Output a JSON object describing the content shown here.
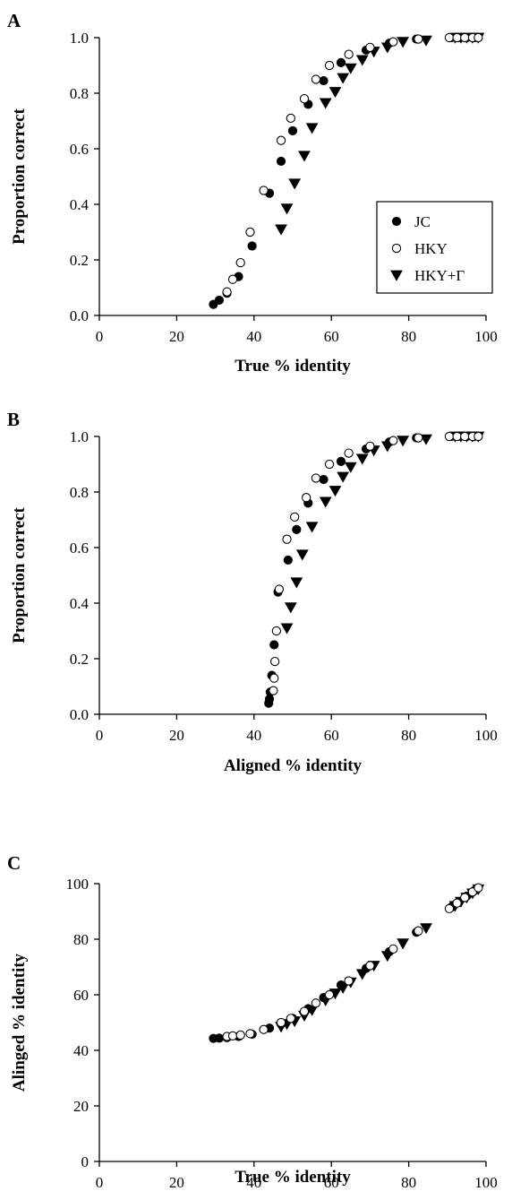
{
  "chart_data": [
    {
      "panel": "A",
      "type": "scatter",
      "xlabel": "True % identity",
      "ylabel": "Proportion correct",
      "xlim": [
        0,
        100
      ],
      "ylim": [
        0,
        1
      ],
      "xticks": [
        "0",
        "20",
        "40",
        "60",
        "80",
        "100"
      ],
      "yticks": [
        "0.0",
        "0.2",
        "0.4",
        "0.6",
        "0.8",
        "1.0"
      ],
      "legend": {
        "placement": "center-right",
        "entries": [
          "JC",
          "HKY",
          "HKY+Γ"
        ]
      },
      "series": [
        {
          "name": "JC",
          "marker": "filled-circle",
          "x": [
            29.5,
            31,
            33,
            36,
            39.5,
            44,
            47,
            50,
            54,
            58,
            62.5,
            69,
            75,
            82,
            91,
            93,
            95,
            97
          ],
          "y": [
            0.04,
            0.055,
            0.08,
            0.14,
            0.25,
            0.44,
            0.555,
            0.665,
            0.76,
            0.845,
            0.91,
            0.955,
            0.98,
            0.995,
            1.0,
            1.0,
            1.0,
            1.0
          ]
        },
        {
          "name": "HKY",
          "marker": "open-circle",
          "x": [
            33,
            34.5,
            36.5,
            39,
            42.5,
            47,
            49.5,
            53,
            56,
            59.5,
            64.5,
            70,
            76,
            82.5,
            90.5,
            92.5,
            94.5,
            96.5,
            98
          ],
          "y": [
            0.085,
            0.13,
            0.19,
            0.3,
            0.45,
            0.63,
            0.71,
            0.78,
            0.85,
            0.9,
            0.94,
            0.965,
            0.985,
            0.995,
            1.0,
            1.0,
            1.0,
            1.0,
            1.0
          ]
        },
        {
          "name": "HKY+Γ",
          "marker": "filled-triangle-down",
          "x": [
            47,
            48.5,
            50.5,
            53,
            55,
            58.5,
            61,
            63,
            65,
            68,
            71,
            74.5,
            78.5,
            84.5,
            92,
            93.5,
            95,
            96.5,
            98
          ],
          "y": [
            0.31,
            0.385,
            0.475,
            0.575,
            0.675,
            0.765,
            0.805,
            0.855,
            0.89,
            0.92,
            0.95,
            0.965,
            0.985,
            0.99,
            1.0,
            1.0,
            1.0,
            1.0,
            1.0
          ]
        }
      ]
    },
    {
      "panel": "B",
      "type": "scatter",
      "xlabel": "Aligned % identity",
      "ylabel": "Proportion correct",
      "xlim": [
        0,
        100
      ],
      "ylim": [
        0,
        1
      ],
      "xticks": [
        "0",
        "20",
        "40",
        "60",
        "80",
        "100"
      ],
      "yticks": [
        "0.0",
        "0.2",
        "0.4",
        "0.6",
        "0.8",
        "1.0"
      ],
      "series": [
        {
          "name": "JC",
          "marker": "filled-circle",
          "x": [
            43.8,
            44,
            44.2,
            44.6,
            45.2,
            46.2,
            48.8,
            51,
            54,
            58,
            62.5,
            69,
            75,
            82,
            91,
            93,
            95,
            97
          ],
          "y": [
            0.04,
            0.055,
            0.08,
            0.14,
            0.25,
            0.44,
            0.555,
            0.665,
            0.76,
            0.845,
            0.91,
            0.955,
            0.98,
            0.995,
            1.0,
            1.0,
            1.0,
            1.0
          ]
        },
        {
          "name": "HKY",
          "marker": "open-circle",
          "x": [
            45,
            45.2,
            45.4,
            45.8,
            46.5,
            48.5,
            50.5,
            53.5,
            56,
            59.5,
            64.5,
            70,
            76,
            82.5,
            90.5,
            92.5,
            94.5,
            96.5,
            98
          ],
          "y": [
            0.085,
            0.13,
            0.19,
            0.3,
            0.45,
            0.63,
            0.71,
            0.78,
            0.85,
            0.9,
            0.94,
            0.965,
            0.985,
            0.995,
            1.0,
            1.0,
            1.0,
            1.0,
            1.0
          ]
        },
        {
          "name": "HKY+Γ",
          "marker": "filled-triangle-down",
          "x": [
            48.5,
            49.5,
            51,
            52.5,
            55,
            58.5,
            61,
            63,
            65,
            68,
            71,
            74.5,
            78.5,
            84.5,
            92,
            93.5,
            95,
            96.5,
            98
          ],
          "y": [
            0.31,
            0.385,
            0.475,
            0.575,
            0.675,
            0.765,
            0.805,
            0.855,
            0.89,
            0.92,
            0.95,
            0.965,
            0.985,
            0.99,
            1.0,
            1.0,
            1.0,
            1.0,
            1.0
          ]
        }
      ]
    },
    {
      "panel": "C",
      "type": "scatter",
      "xlabel": "True % identity",
      "ylabel": "Alinged % identity",
      "xlim": [
        0,
        100
      ],
      "ylim": [
        0,
        100
      ],
      "xticks": [
        "0",
        "20",
        "40",
        "60",
        "80",
        "100"
      ],
      "yticks": [
        "0",
        "20",
        "40",
        "60",
        "80",
        "100"
      ],
      "series": [
        {
          "name": "JC",
          "marker": "filled-circle",
          "x": [
            29.5,
            31,
            33,
            36,
            39.5,
            44,
            47,
            50,
            54,
            58,
            62.5,
            69,
            75,
            82,
            91,
            93,
            95,
            97
          ],
          "y": [
            44.3,
            44.4,
            44.6,
            45,
            45.8,
            48,
            49.5,
            51.5,
            55,
            59,
            63.5,
            69.5,
            75.5,
            82.5,
            91.5,
            93.5,
            95.5,
            97.5
          ]
        },
        {
          "name": "HKY",
          "marker": "open-circle",
          "x": [
            33,
            34.5,
            36.5,
            39,
            42.5,
            47,
            49.5,
            53,
            56,
            59.5,
            64.5,
            70,
            76,
            82.5,
            90.5,
            92.5,
            94.5,
            96.5,
            98
          ],
          "y": [
            45,
            45.2,
            45.5,
            46,
            47.5,
            50,
            51.5,
            54,
            57,
            60,
            65,
            70.5,
            76.5,
            83,
            91,
            93,
            95,
            97,
            98.5
          ]
        },
        {
          "name": "HKY+Γ",
          "marker": "filled-triangle-down",
          "x": [
            47,
            48.5,
            50.5,
            53,
            55,
            58.5,
            61,
            63,
            65,
            68,
            71,
            74.5,
            78.5,
            84.5,
            92,
            93.5,
            95,
            96.5,
            98
          ],
          "y": [
            48.5,
            49.5,
            50.5,
            52.5,
            54.5,
            58,
            60.5,
            62.5,
            64.5,
            67.5,
            70.5,
            74,
            78.5,
            84,
            92,
            93.5,
            95,
            96.5,
            98
          ]
        }
      ]
    }
  ]
}
